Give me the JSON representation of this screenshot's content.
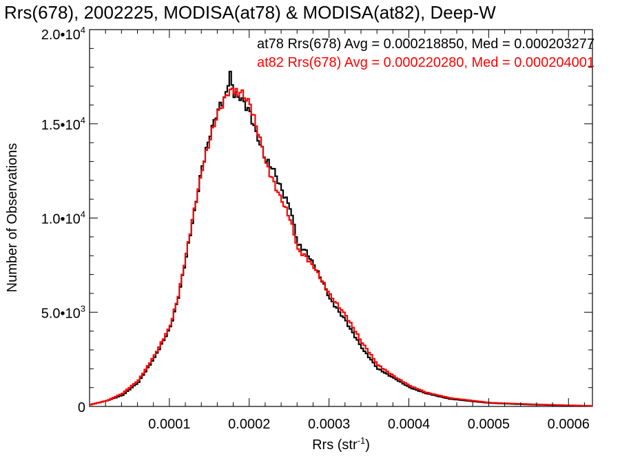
{
  "chart_data": {
    "type": "line",
    "title": "Rrs(678), 2002225, MODISA(at78) & MODISA(at82), Deep-W",
    "xlabel": {
      "base": "Rrs (str",
      "sup": "-1",
      "close": ")"
    },
    "ylabel": "Number of Observations",
    "xlim": [
      0.0,
      0.00063
    ],
    "ylim": [
      0,
      20000
    ],
    "grid": false,
    "x_ticks": [
      {
        "value": 0.0001,
        "label": "0.0001"
      },
      {
        "value": 0.0002,
        "label": "0.0002"
      },
      {
        "value": 0.0003,
        "label": "0.0003"
      },
      {
        "value": 0.0004,
        "label": "0.0004"
      },
      {
        "value": 0.0005,
        "label": "0.0005"
      },
      {
        "value": 0.0006,
        "label": "0.0006"
      }
    ],
    "y_ticks": [
      {
        "value": 0,
        "mant": "0",
        "exp": ""
      },
      {
        "value": 5000,
        "mant": "5.0•10",
        "exp": "3"
      },
      {
        "value": 10000,
        "mant": "1.0•10",
        "exp": "4"
      },
      {
        "value": 15000,
        "mant": "1.5•10",
        "exp": "4"
      },
      {
        "value": 20000,
        "mant": "2.0•10",
        "exp": "4"
      }
    ],
    "annotations": [
      {
        "text": "at78 Rrs(678) Avg = 0.000218850, Med = 0.000203277",
        "color": "#000000"
      },
      {
        "text": "at82 Rrs(678) Avg = 0.000220280, Med = 0.000204001",
        "color": "#ff0000"
      }
    ],
    "series": [
      {
        "color": "#000000",
        "x": [
          0.0,
          2e-05,
          4e-05,
          6e-05,
          8e-05,
          0.0001,
          0.00011,
          0.00012,
          0.00013,
          0.00014,
          0.00015,
          0.00016,
          0.00017,
          0.000175,
          0.00018,
          0.00019,
          0.0002,
          0.00021,
          0.00022,
          0.00023,
          0.00024,
          0.00025,
          0.00026,
          0.00027,
          0.00028,
          0.00029,
          0.0003,
          0.00032,
          0.00034,
          0.00036,
          0.00038,
          0.0004,
          0.00042,
          0.00045,
          0.0005,
          0.00055,
          0.0006,
          0.00063
        ],
        "y": [
          100,
          300,
          600,
          1300,
          2600,
          4200,
          5800,
          8000,
          10300,
          12700,
          14500,
          15800,
          16500,
          17800,
          16600,
          16300,
          15500,
          14200,
          13100,
          12500,
          11400,
          10600,
          8600,
          8200,
          7500,
          6700,
          5700,
          4500,
          3100,
          2000,
          1500,
          1000,
          700,
          400,
          180,
          100,
          50,
          20
        ]
      },
      {
        "color": "#ff0000",
        "x": [
          0.0,
          2e-05,
          4e-05,
          6e-05,
          8e-05,
          0.0001,
          0.00011,
          0.00012,
          0.00013,
          0.00014,
          0.00015,
          0.00016,
          0.00017,
          0.000175,
          0.00018,
          0.00019,
          0.0002,
          0.00021,
          0.00022,
          0.00023,
          0.00024,
          0.00025,
          0.00026,
          0.00027,
          0.00028,
          0.00029,
          0.0003,
          0.00032,
          0.00034,
          0.00036,
          0.00038,
          0.0004,
          0.00042,
          0.00045,
          0.0005,
          0.00055,
          0.0006,
          0.00063
        ],
        "y": [
          100,
          300,
          700,
          1400,
          2700,
          4300,
          5900,
          8100,
          10400,
          12600,
          14300,
          15600,
          16400,
          17000,
          16700,
          16600,
          16000,
          14600,
          12900,
          11800,
          10900,
          10000,
          8300,
          7900,
          7400,
          6700,
          5900,
          4800,
          3400,
          2200,
          1600,
          1100,
          750,
          450,
          200,
          120,
          60,
          30
        ]
      }
    ]
  }
}
